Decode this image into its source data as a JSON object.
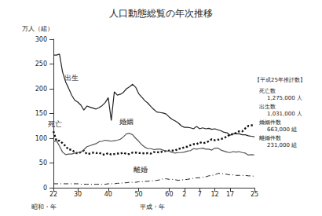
{
  "chart_data": {
    "type": "line",
    "title": "人口動態総覧の年次推移",
    "ylabel": "万人（組）",
    "xlabels": [
      "昭和・年",
      "平成・年"
    ],
    "categories": [
      "22",
      null,
      null,
      null,
      null,
      null,
      null,
      null,
      "30",
      null,
      null,
      null,
      null,
      null,
      null,
      null,
      null,
      null,
      "40",
      null,
      null,
      null,
      null,
      null,
      null,
      null,
      null,
      null,
      "50",
      null,
      null,
      null,
      null,
      null,
      null,
      null,
      null,
      null,
      "60",
      null,
      null,
      null,
      null,
      "2",
      null,
      null,
      null,
      null,
      "7",
      null,
      null,
      null,
      null,
      "12",
      null,
      null,
      null,
      null,
      "17",
      null,
      null,
      null,
      null,
      null,
      null,
      null,
      "25"
    ],
    "ylim": [
      0,
      300
    ],
    "yticks": [
      0,
      50,
      100,
      150,
      200,
      250,
      300
    ],
    "grid": false,
    "series": [
      {
        "name": "出生",
        "color": "#222222",
        "line_style": "solid",
        "values": [
          268,
          268,
          270,
          234,
          214,
          201,
          187,
          177,
          173,
          167,
          157,
          165,
          163,
          161,
          159,
          162,
          166,
          172,
          182,
          136,
          194,
          187,
          189,
          193,
          200,
          204,
          209,
          203,
          190,
          183,
          176,
          171,
          164,
          158,
          153,
          152,
          151,
          149,
          143,
          138,
          135,
          131,
          125,
          122,
          122,
          121,
          119,
          124,
          119,
          121,
          119,
          120,
          118,
          119,
          117,
          115,
          112,
          111,
          106,
          109,
          109,
          109,
          107,
          107,
          105,
          104,
          103.1
        ]
      },
      {
        "name": "死亡",
        "color": "#111111",
        "line_style": "dotted",
        "values": [
          114,
          95,
          95,
          90,
          84,
          77,
          77,
          72,
          69,
          72,
          75,
          68,
          69,
          71,
          70,
          71,
          67,
          67,
          70,
          67,
          68,
          69,
          69,
          71,
          68,
          68,
          71,
          71,
          70,
          70,
          69,
          70,
          69,
          72,
          72,
          71,
          74,
          74,
          75,
          75,
          75,
          79,
          79,
          82,
          83,
          86,
          88,
          88,
          92,
          90,
          91,
          94,
          98,
          96,
          97,
          98,
          101,
          103,
          108,
          108,
          111,
          114,
          114,
          120,
          125,
          126,
          127.5
        ]
      },
      {
        "name": "婚姻",
        "color": "#555555",
        "line_style": "solid",
        "values": [
          93,
          95,
          84,
          72,
          67,
          68,
          68,
          70,
          71,
          72,
          77,
          83,
          85,
          87,
          89,
          93,
          94,
          96,
          95,
          94,
          95,
          96,
          98,
          103,
          109,
          110,
          107,
          100,
          94,
          87,
          82,
          79,
          79,
          77,
          78,
          78,
          76,
          74,
          74,
          71,
          70,
          71,
          71,
          72,
          74,
          75,
          79,
          78,
          79,
          80,
          78,
          78,
          76,
          80,
          80,
          76,
          74,
          72,
          71,
          73,
          72,
          73,
          71,
          70,
          66,
          67,
          66.3
        ]
      },
      {
        "name": "離婚",
        "color": "#222222",
        "line_style": "dashdot",
        "values": [
          8,
          8,
          8,
          8,
          8,
          8,
          8,
          8,
          8,
          7,
          7,
          7,
          7,
          7,
          7,
          7,
          7,
          7,
          8,
          8,
          8,
          9,
          9,
          10,
          10,
          11,
          11,
          11,
          12,
          12,
          13,
          13,
          14,
          14,
          15,
          16,
          18,
          18,
          17,
          17,
          16,
          15,
          16,
          16,
          17,
          18,
          19,
          20,
          20,
          21,
          22,
          24,
          25,
          26,
          29,
          29,
          28,
          27,
          26,
          26,
          25,
          25,
          25,
          25,
          24,
          24,
          23.1
        ]
      }
    ],
    "note": {
      "title": "【平成25年推計数】",
      "items": [
        {
          "label": "死亡数",
          "value": "1,275,000 人"
        },
        {
          "label": "出生数",
          "value": "1,031,000 人"
        },
        {
          "label": "婚姻件数",
          "value": "663,000 組"
        },
        {
          "label": "離婚件数",
          "value": "231,000 組"
        }
      ]
    }
  }
}
